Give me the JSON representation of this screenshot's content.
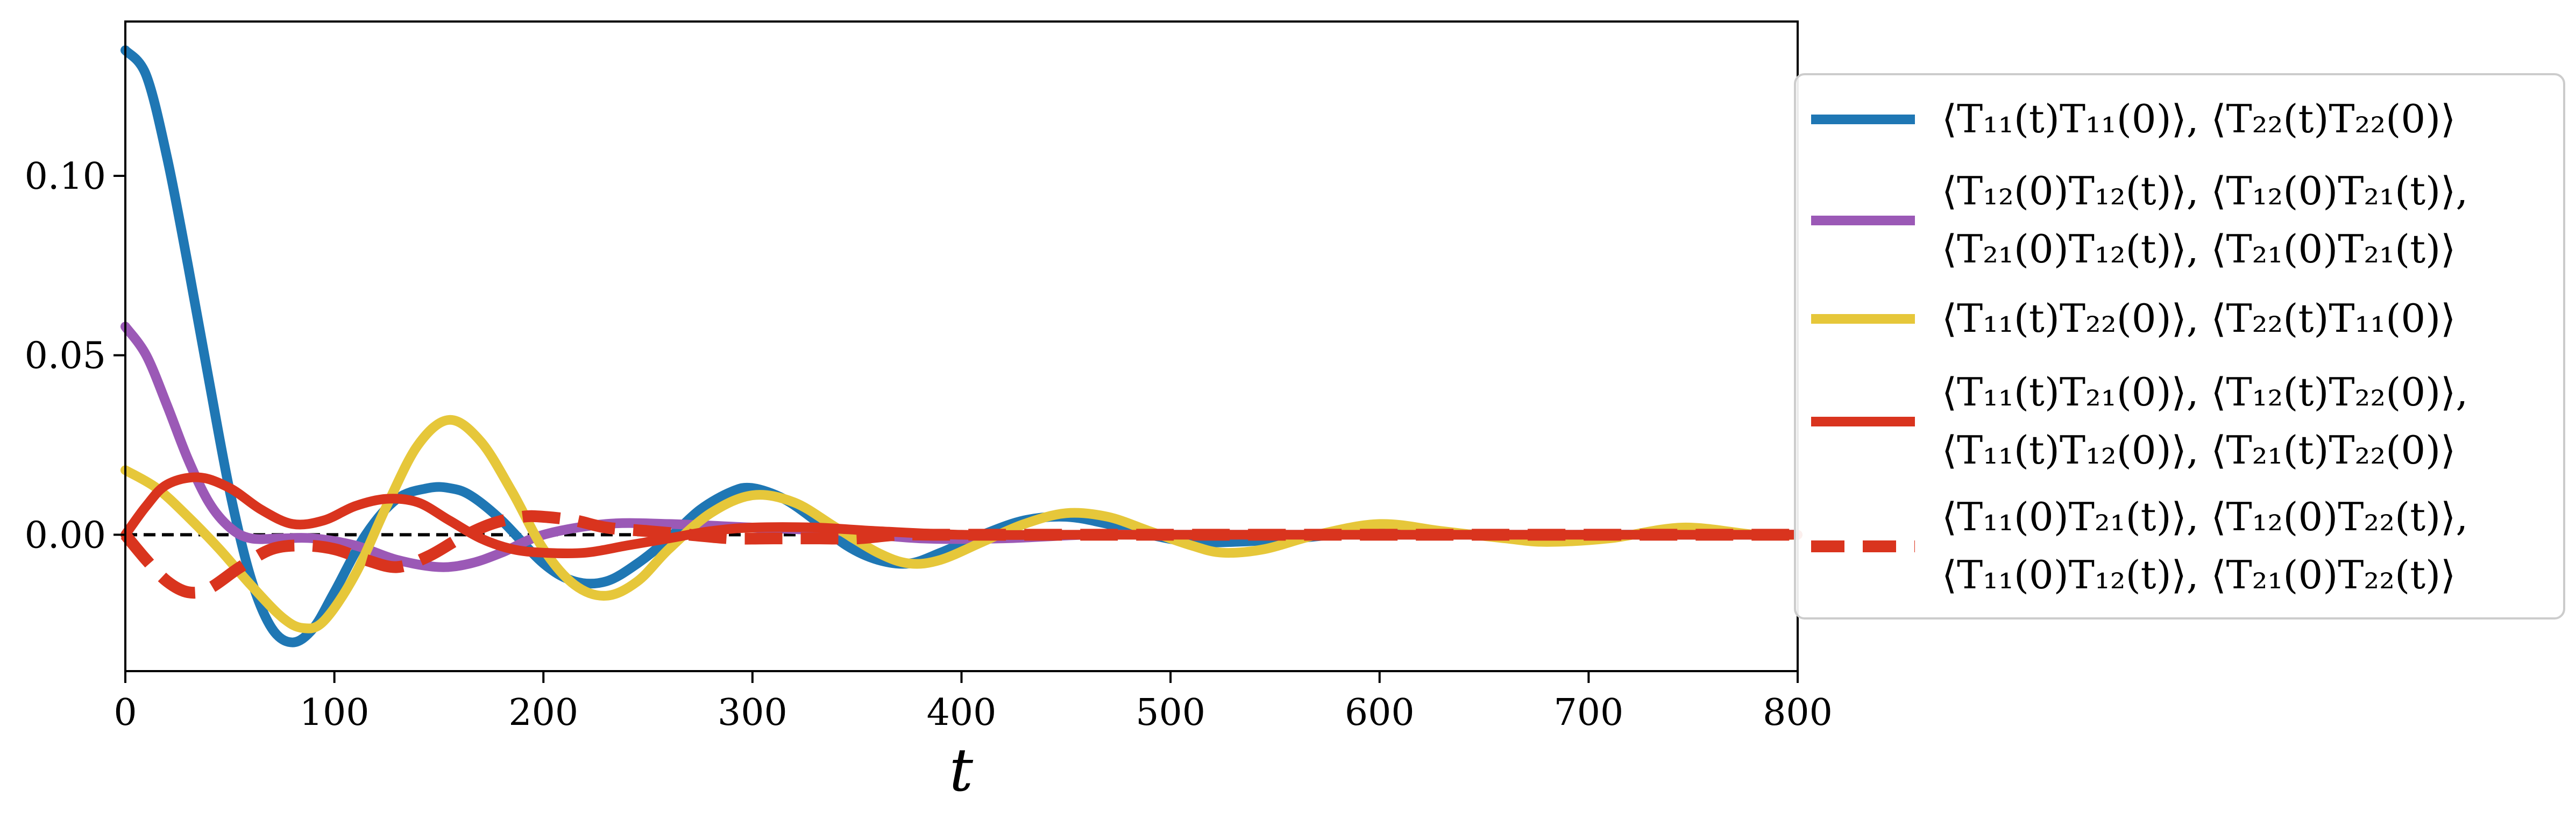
{
  "chart_data": {
    "type": "line",
    "title": "",
    "xlabel": "t",
    "ylabel": "",
    "xlim": [
      0,
      800
    ],
    "ylim": [
      -0.038,
      0.143
    ],
    "xticks": [
      "0",
      "100",
      "200",
      "300",
      "400",
      "500",
      "600",
      "700",
      "800"
    ],
    "yticks": [
      "0.00",
      "0.05",
      "0.10"
    ],
    "grid": false,
    "zero_line": {
      "y": 0,
      "style": "dashed",
      "color": "#000000"
    },
    "legend_position": "right, outside plot",
    "series": [
      {
        "name_lines": [
          "⟨T₁₁(t)T₁₁(0)⟩, ⟨T₂₂(t)T₂₂(0)⟩"
        ],
        "color": "#1f77b4",
        "dash": "solid",
        "x": [
          0,
          10,
          20,
          30,
          40,
          50,
          60,
          70,
          80,
          90,
          100,
          115,
          130,
          145,
          155,
          165,
          180,
          200,
          215,
          230,
          245,
          260,
          275,
          290,
          300,
          315,
          330,
          345,
          360,
          375,
          390,
          410,
          430,
          450,
          470,
          490,
          510,
          530,
          560,
          600,
          650,
          700,
          750,
          800
        ],
        "y": [
          0.135,
          0.128,
          0.105,
          0.075,
          0.043,
          0.012,
          -0.012,
          -0.026,
          -0.03,
          -0.026,
          -0.016,
          0.0,
          0.01,
          0.013,
          0.013,
          0.011,
          0.004,
          -0.008,
          -0.013,
          -0.013,
          -0.008,
          -0.001,
          0.007,
          0.012,
          0.013,
          0.01,
          0.004,
          -0.003,
          -0.007,
          -0.008,
          -0.005,
          0.0,
          0.004,
          0.005,
          0.003,
          0.0,
          -0.002,
          -0.002,
          -0.001,
          0.001,
          0.0,
          0.0,
          0.0,
          0.0
        ]
      },
      {
        "name_lines": [
          "⟨T₁₂(0)T₁₂(t)⟩, ⟨T₁₂(0)T₂₁(t)⟩,",
          "⟨T₂₁(0)T₁₂(t)⟩, ⟨T₂₁(0)T₂₁(t)⟩"
        ],
        "color": "#9b59b6",
        "dash": "solid",
        "x": [
          0,
          10,
          20,
          30,
          40,
          50,
          60,
          75,
          90,
          110,
          130,
          150,
          165,
          180,
          200,
          230,
          260,
          300,
          340,
          380,
          420,
          460,
          500,
          560,
          620,
          700,
          800
        ],
        "y": [
          0.058,
          0.05,
          0.036,
          0.021,
          0.009,
          0.002,
          -0.001,
          -0.001,
          -0.001,
          -0.003,
          -0.007,
          -0.009,
          -0.008,
          -0.005,
          0.0,
          0.003,
          0.003,
          0.002,
          0.001,
          -0.001,
          -0.001,
          0.0,
          0.0,
          0.0,
          0.0,
          0.0,
          0.0
        ]
      },
      {
        "name_lines": [
          "⟨T₁₁(t)T₂₂(0)⟩, ⟨T₂₂(t)T₁₁(0)⟩"
        ],
        "color": "#e6c73a",
        "dash": "solid",
        "x": [
          0,
          15,
          30,
          45,
          60,
          75,
          85,
          95,
          110,
          125,
          140,
          155,
          170,
          185,
          200,
          215,
          230,
          245,
          260,
          280,
          300,
          320,
          340,
          360,
          375,
          390,
          410,
          430,
          450,
          470,
          490,
          510,
          525,
          545,
          570,
          600,
          630,
          660,
          680,
          710,
          745,
          780,
          800
        ],
        "y": [
          0.018,
          0.013,
          0.005,
          -0.004,
          -0.014,
          -0.023,
          -0.026,
          -0.024,
          -0.011,
          0.008,
          0.025,
          0.032,
          0.026,
          0.012,
          -0.004,
          -0.014,
          -0.017,
          -0.013,
          -0.004,
          0.006,
          0.011,
          0.009,
          0.002,
          -0.005,
          -0.008,
          -0.007,
          -0.002,
          0.003,
          0.006,
          0.005,
          0.001,
          -0.003,
          -0.005,
          -0.004,
          0.0,
          0.003,
          0.001,
          -0.001,
          -0.002,
          -0.001,
          0.002,
          0.0,
          0.0
        ]
      },
      {
        "name_lines": [
          "⟨T₁₁(t)T₂₁(0)⟩, ⟨T₁₂(t)T₂₂(0)⟩,",
          "⟨T₁₁(t)T₁₂(0)⟩, ⟨T₂₁(t)T₂₂(0)⟩"
        ],
        "color": "#d9341e",
        "dash": "solid",
        "x": [
          0,
          10,
          20,
          35,
          50,
          65,
          80,
          95,
          110,
          125,
          140,
          155,
          170,
          185,
          200,
          220,
          240,
          260,
          280,
          300,
          330,
          360,
          400,
          450,
          500,
          560,
          620,
          700,
          800
        ],
        "y": [
          0.0,
          0.008,
          0.014,
          0.016,
          0.013,
          0.007,
          0.003,
          0.004,
          0.008,
          0.01,
          0.009,
          0.004,
          -0.001,
          -0.004,
          -0.005,
          -0.005,
          -0.003,
          -0.001,
          0.001,
          0.002,
          0.002,
          0.001,
          0.0,
          0.0,
          0.0,
          0.0,
          0.0,
          0.0,
          0.0
        ]
      },
      {
        "name_lines": [
          "⟨T₁₁(0)T₂₁(t)⟩, ⟨T₁₂(0)T₂₂(t)⟩,",
          "⟨T₁₁(0)T₁₂(t)⟩, ⟨T₂₁(0)T₂₂(t)⟩"
        ],
        "color": "#d9341e",
        "dash": "dashed",
        "x": [
          0,
          10,
          20,
          30,
          40,
          55,
          70,
          85,
          100,
          115,
          130,
          145,
          160,
          175,
          190,
          200,
          215,
          230,
          250,
          270,
          290,
          310,
          330,
          350,
          370,
          390,
          420,
          460,
          500,
          560,
          620,
          700,
          800
        ],
        "y": [
          0.0,
          -0.007,
          -0.013,
          -0.016,
          -0.015,
          -0.009,
          -0.004,
          -0.003,
          -0.004,
          -0.007,
          -0.009,
          -0.006,
          -0.001,
          0.003,
          0.005,
          0.005,
          0.004,
          0.002,
          0.001,
          0.0,
          -0.001,
          -0.001,
          -0.001,
          -0.001,
          0.0,
          0.0,
          0.0,
          0.0,
          0.0,
          0.0,
          0.0,
          0.0,
          0.0
        ]
      }
    ]
  }
}
